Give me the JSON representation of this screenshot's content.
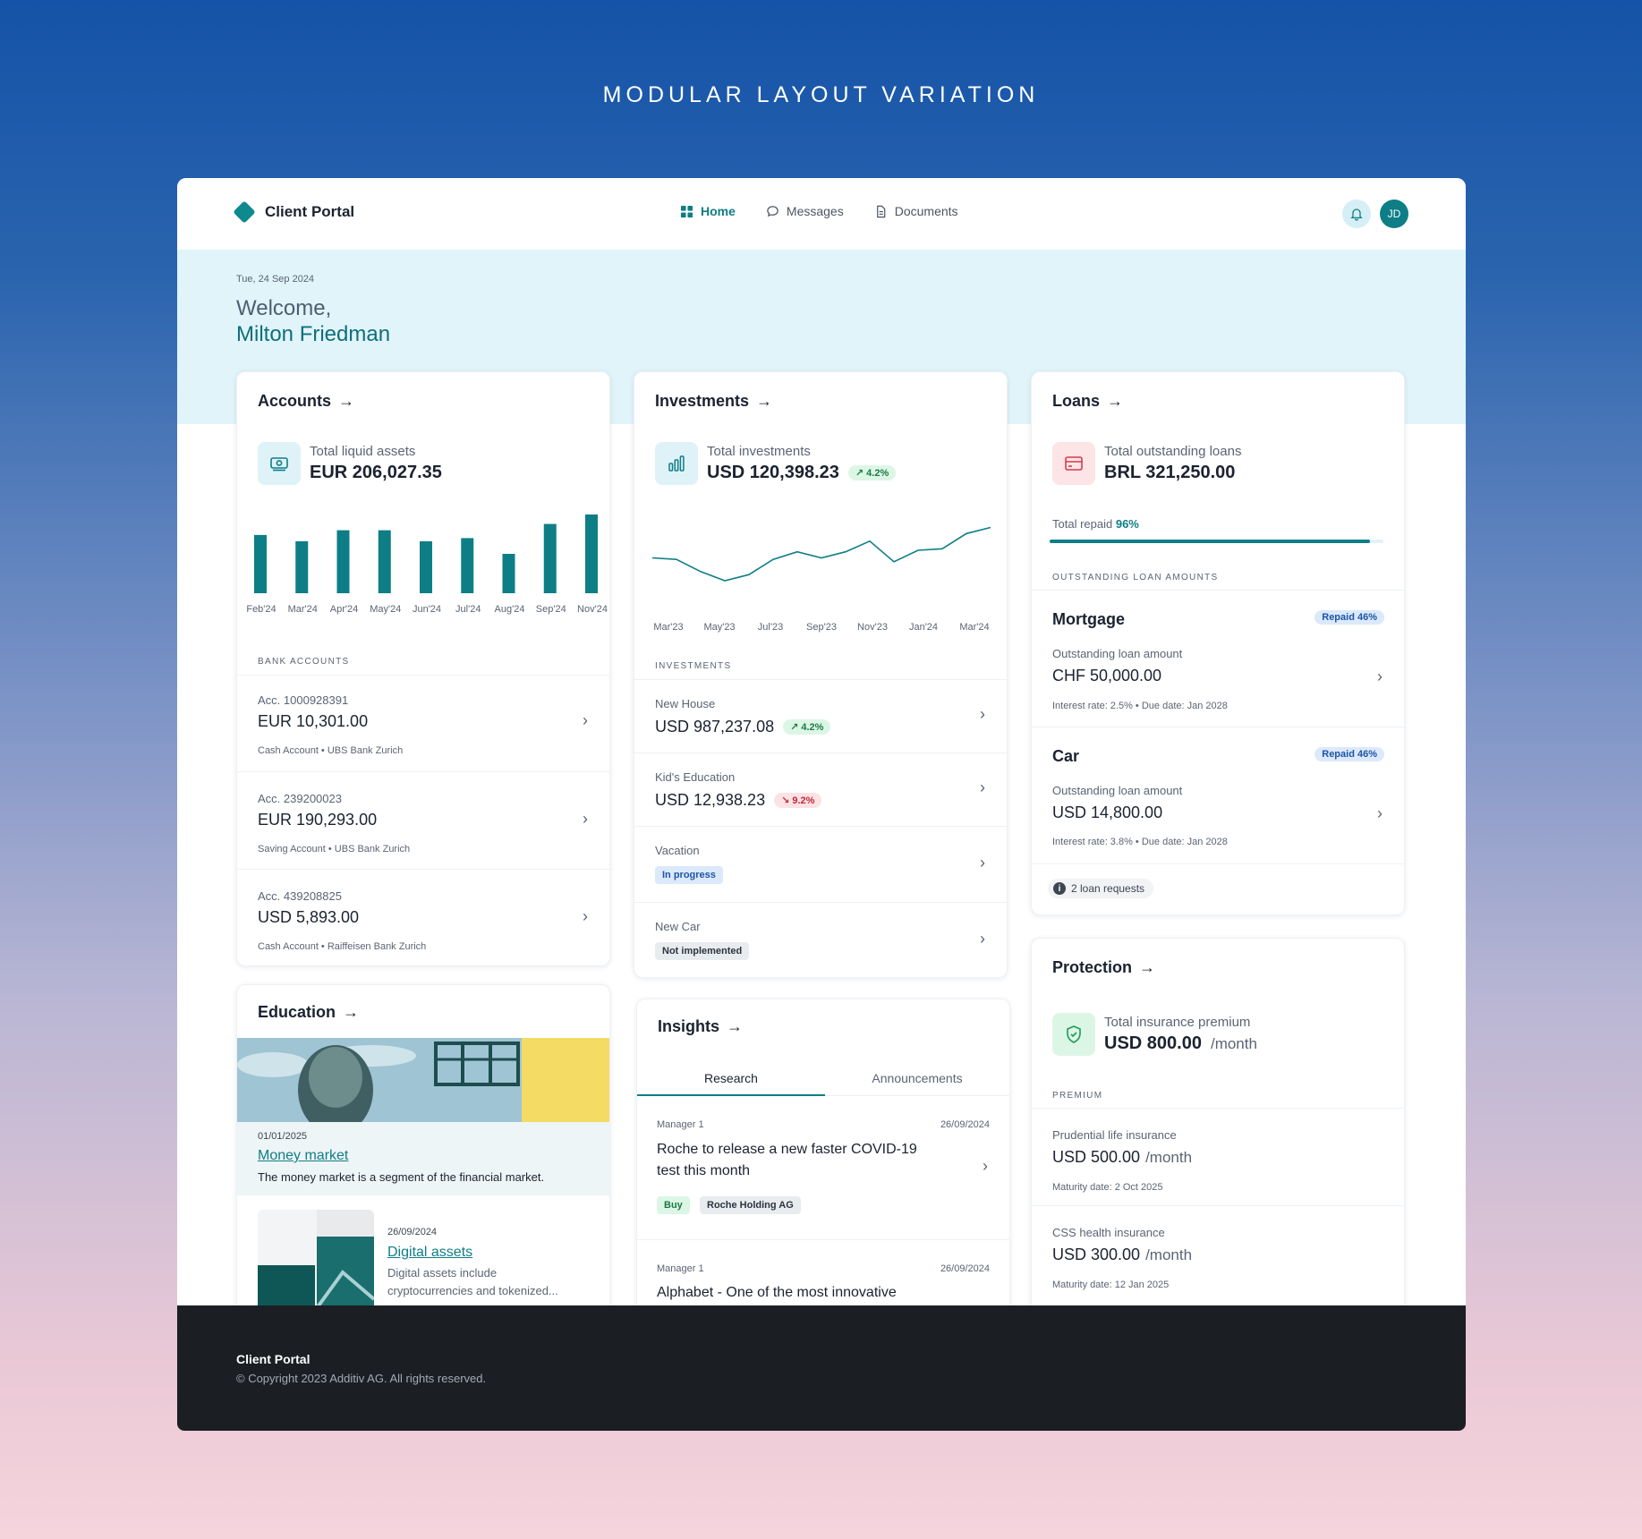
{
  "page_title": "MODULAR LAYOUT VARIATION",
  "nav": {
    "brand": "Client Portal",
    "links": [
      {
        "label": "Home",
        "icon": "grid-icon",
        "active": true
      },
      {
        "label": "Messages",
        "icon": "chat-bubble-icon",
        "active": false
      },
      {
        "label": "Documents",
        "icon": "document-icon",
        "active": false
      }
    ],
    "avatar_initials": "JD"
  },
  "hero": {
    "date": "Tue, 24 Sep 2024",
    "welcome": "Welcome,",
    "name": "Milton Friedman"
  },
  "accounts": {
    "title": "Accounts",
    "summary_label": "Total liquid assets",
    "summary_value": "EUR 206,027.35",
    "section_caption": "BANK ACCOUNTS",
    "items": [
      {
        "number": "Acc. 1000928391",
        "amount": "EUR 10,301.00",
        "meta": "Cash Account  •  UBS Bank Zurich"
      },
      {
        "number": "Acc. 239200023",
        "amount": "EUR 190,293.00",
        "meta": "Saving Account  •  UBS Bank Zurich"
      },
      {
        "number": "Acc. 439208825",
        "amount": "USD 5,893.00",
        "meta": "Cash Account  •  Raiffeisen Bank Zurich"
      }
    ]
  },
  "investments": {
    "title": "Investments",
    "summary_label": "Total investments",
    "summary_value": "USD 120,398.23",
    "summary_change": "4.2%",
    "section_caption": "INVESTMENTS",
    "items": [
      {
        "name": "New House",
        "amount": "USD 987,237.08",
        "change": "4.2%",
        "direction": "up"
      },
      {
        "name": "Kid's Education",
        "amount": "USD 12,938.23",
        "change": "9.2%",
        "direction": "down"
      },
      {
        "name": "Vacation",
        "status": "In progress"
      },
      {
        "name": "New Car",
        "status": "Not implemented"
      }
    ]
  },
  "loans": {
    "title": "Loans",
    "summary_label": "Total outstanding loans",
    "summary_value": "BRL 321,250.00",
    "repaid_label": "Total repaid",
    "repaid_value": "96%",
    "repaid_fraction": 0.96,
    "section_caption": "OUTSTANDING LOAN AMOUNTS",
    "items": [
      {
        "name": "Mortgage",
        "badge": "Repaid 46%",
        "sub": "Outstanding loan amount",
        "amount": "CHF  50,000.00",
        "meta": "Interest rate: 2.5%  •  Due date: Jan 2028"
      },
      {
        "name": "Car",
        "badge": "Repaid 46%",
        "sub": "Outstanding loan amount",
        "amount": "USD 14,800.00",
        "meta": "Interest rate: 3.8%  •  Due date: Jan 2028"
      }
    ],
    "requests": "2 loan requests"
  },
  "protection": {
    "title": "Protection",
    "summary_label": "Total insurance premium",
    "summary_value": "USD 800.00",
    "summary_unit": "/month",
    "section_caption": "PREMIUM",
    "items": [
      {
        "name": "Prudential life insurance",
        "amount": "USD 500.00",
        "unit": "/month",
        "meta": "Maturity date: 2 Oct 2025"
      },
      {
        "name": "CSS health insurance",
        "amount": "USD 300.00",
        "unit": "/month",
        "meta": "Maturity date: 12 Jan 2025"
      }
    ]
  },
  "education": {
    "title": "Education",
    "items": [
      {
        "date": "01/01/2025",
        "title": "Money market",
        "desc": "The money market is a segment of the financial market."
      },
      {
        "date": "26/09/2024",
        "title": "Digital assets",
        "desc": "Digital assets include",
        "desc2": "cryptocurrencies and tokenized..."
      }
    ]
  },
  "insights": {
    "title": "Insights",
    "tabs": [
      "Research",
      "Announcements"
    ],
    "items": [
      {
        "author": "Manager 1",
        "date": "26/09/2024",
        "title_line1": "Roche to release a new faster COVID-19",
        "title_line2": "test this month",
        "tags": [
          "Buy",
          "Roche Holding AG"
        ]
      },
      {
        "author": "Manager 1",
        "date": "26/09/2024",
        "title_line1": "Alphabet - One of the most innovative"
      }
    ]
  },
  "footer": {
    "brand": "Client Portal",
    "copyright": "© Copyright 2023 Additiv AG. All rights reserved."
  },
  "colors": {
    "accent": "#0e7e86",
    "hero_bg": "#e0f4fa",
    "footer_bg": "#1b1e22",
    "bar": "#0e7e86"
  },
  "chart_data": [
    {
      "type": "bar",
      "categories": [
        "Feb'24",
        "Mar'24",
        "Apr'24",
        "May'24",
        "Jun'24",
        "Jul'24",
        "Aug'24",
        "Sep'24",
        "Nov'24"
      ],
      "values": [
        74,
        66,
        80,
        80,
        66,
        70,
        50,
        88,
        100
      ],
      "ylim": [
        0,
        100
      ]
    },
    {
      "type": "line",
      "x_ticks": [
        "Mar'23",
        "May'23",
        "Jul'23",
        "Sep'23",
        "Nov'23",
        "Jan'24",
        "Mar'24"
      ],
      "values": [
        50,
        48,
        32,
        20,
        28,
        48,
        58,
        50,
        58,
        72,
        45,
        60,
        62,
        82,
        90
      ],
      "ylim": [
        0,
        100
      ]
    }
  ]
}
